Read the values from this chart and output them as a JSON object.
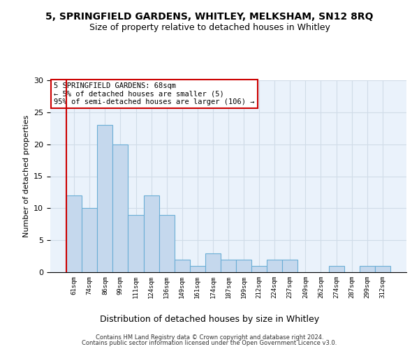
{
  "title": "5, SPRINGFIELD GARDENS, WHITLEY, MELKSHAM, SN12 8RQ",
  "subtitle": "Size of property relative to detached houses in Whitley",
  "xlabel": "Distribution of detached houses by size in Whitley",
  "ylabel": "Number of detached properties",
  "bar_labels": [
    "61sqm",
    "74sqm",
    "86sqm",
    "99sqm",
    "111sqm",
    "124sqm",
    "136sqm",
    "149sqm",
    "161sqm",
    "174sqm",
    "187sqm",
    "199sqm",
    "212sqm",
    "224sqm",
    "237sqm",
    "249sqm",
    "262sqm",
    "274sqm",
    "287sqm",
    "299sqm",
    "312sqm"
  ],
  "bar_values": [
    12,
    10,
    23,
    20,
    9,
    12,
    9,
    2,
    1,
    3,
    2,
    2,
    1,
    2,
    2,
    0,
    0,
    1,
    0,
    1,
    1
  ],
  "bar_color": "#c5d8ed",
  "bar_edge_color": "#6aaed6",
  "annotation_box_text": "5 SPRINGFIELD GARDENS: 68sqm\n← 5% of detached houses are smaller (5)\n95% of semi-detached houses are larger (106) →",
  "annotation_box_color": "#ffffff",
  "annotation_box_edge_color": "#cc0000",
  "ylim": [
    0,
    30
  ],
  "yticks": [
    0,
    5,
    10,
    15,
    20,
    25,
    30
  ],
  "grid_color": "#d0dce8",
  "bg_color": "#eaf2fb",
  "red_line_x": -0.5,
  "footer_line1": "Contains HM Land Registry data © Crown copyright and database right 2024.",
  "footer_line2": "Contains public sector information licensed under the Open Government Licence v3.0."
}
